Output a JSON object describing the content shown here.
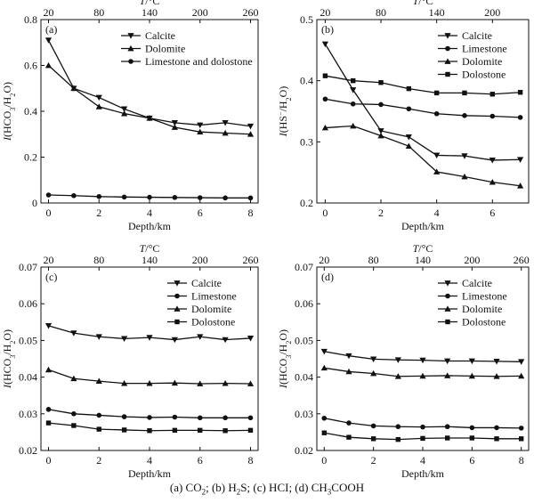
{
  "caption": {
    "a": "(a) CO",
    "a_sub": "2",
    "b": "; (b) H",
    "b_sub": "2",
    "c": "S; (c) HCI; (d) CH",
    "c_sub": "3",
    "d": "COOH"
  },
  "chart_data": [
    {
      "type": "line",
      "panel_label": "(a)",
      "xlabel": "Depth/km",
      "top_xlabel": "T/°C",
      "ylabel": "I(HCO3/H2O)",
      "xlim": [
        -0.3,
        8.3
      ],
      "ylim": [
        0,
        0.8
      ],
      "xticks": [
        0,
        2,
        4,
        6,
        8
      ],
      "yticks": [
        0,
        0.2,
        0.4,
        0.6,
        0.8
      ],
      "ytick_labels": [
        "0",
        "0.2",
        "0.4",
        "0.6",
        "0.8"
      ],
      "top_ticks": [
        20,
        80,
        140,
        200,
        260
      ],
      "legend_position": "top-right",
      "series": [
        {
          "name": "Calcite",
          "marker": "tri-down",
          "x": [
            0,
            1,
            2,
            3,
            4,
            5,
            6,
            7,
            8
          ],
          "y": [
            0.71,
            0.5,
            0.46,
            0.41,
            0.37,
            0.35,
            0.34,
            0.35,
            0.335
          ]
        },
        {
          "name": "Dolomite",
          "marker": "tri-up",
          "x": [
            0,
            1,
            2,
            3,
            4,
            5,
            6,
            7,
            8
          ],
          "y": [
            0.6,
            0.5,
            0.42,
            0.39,
            0.37,
            0.33,
            0.31,
            0.305,
            0.3
          ]
        },
        {
          "name": "Limestone and dolostone",
          "marker": "circle",
          "x": [
            0,
            1,
            2,
            3,
            4,
            5,
            6,
            7,
            8
          ],
          "y": [
            0.035,
            0.032,
            0.028,
            0.026,
            0.025,
            0.024,
            0.023,
            0.022,
            0.022
          ]
        }
      ]
    },
    {
      "type": "line",
      "panel_label": "(b)",
      "xlabel": "Depth/km",
      "top_xlabel": "T/°C",
      "ylabel": "I(HS−/H2O)",
      "xlim": [
        -0.3,
        7.3
      ],
      "ylim": [
        0.2,
        0.5
      ],
      "xticks": [
        0,
        2,
        4,
        6
      ],
      "yticks": [
        0.2,
        0.3,
        0.4,
        0.5
      ],
      "ytick_labels": [
        "0.2",
        "0.3",
        "0.4",
        "0.5"
      ],
      "top_ticks": [
        20,
        80,
        140,
        200
      ],
      "legend_position": "top-right",
      "series": [
        {
          "name": "Calcite",
          "marker": "tri-down",
          "x": [
            0,
            1,
            2,
            3,
            4,
            5,
            6,
            7
          ],
          "y": [
            0.46,
            0.385,
            0.318,
            0.308,
            0.278,
            0.277,
            0.27,
            0.271
          ]
        },
        {
          "name": "Limestone",
          "marker": "circle",
          "x": [
            0,
            1,
            2,
            3,
            4,
            5,
            6,
            7
          ],
          "y": [
            0.37,
            0.362,
            0.361,
            0.354,
            0.346,
            0.343,
            0.342,
            0.34
          ]
        },
        {
          "name": "Dolomite",
          "marker": "tri-up",
          "x": [
            0,
            1,
            2,
            3,
            4,
            5,
            6,
            7
          ],
          "y": [
            0.323,
            0.326,
            0.31,
            0.293,
            0.251,
            0.243,
            0.234,
            0.228
          ]
        },
        {
          "name": "Dolostone",
          "marker": "square",
          "x": [
            0,
            1,
            2,
            3,
            4,
            5,
            6,
            7
          ],
          "y": [
            0.408,
            0.4,
            0.397,
            0.387,
            0.38,
            0.38,
            0.378,
            0.381
          ]
        }
      ]
    },
    {
      "type": "line",
      "panel_label": "(c)",
      "xlabel": "Depth/km",
      "top_xlabel": "T/°C",
      "ylabel": "I(HCO3/H2O)",
      "xlim": [
        -0.3,
        8.3
      ],
      "ylim": [
        0.02,
        0.07
      ],
      "xticks": [
        0,
        2,
        4,
        6,
        8
      ],
      "yticks": [
        0.02,
        0.03,
        0.04,
        0.05,
        0.06,
        0.07
      ],
      "ytick_labels": [
        "0.02",
        "0.03",
        "0.04",
        "0.05",
        "0.06",
        "0.07"
      ],
      "top_ticks": [
        20,
        80,
        140,
        200,
        260
      ],
      "legend_position": "top-right",
      "series": [
        {
          "name": "Calcite",
          "marker": "tri-down",
          "x": [
            0,
            1,
            2,
            3,
            4,
            5,
            6,
            7,
            8
          ],
          "y": [
            0.054,
            0.052,
            0.051,
            0.0505,
            0.0508,
            0.0502,
            0.051,
            0.0502,
            0.0506
          ]
        },
        {
          "name": "Limestone",
          "marker": "circle",
          "x": [
            0,
            1,
            2,
            3,
            4,
            5,
            6,
            7,
            8
          ],
          "y": [
            0.0312,
            0.03,
            0.0296,
            0.0292,
            0.029,
            0.0291,
            0.0289,
            0.0289,
            0.0289
          ]
        },
        {
          "name": "Dolomite",
          "marker": "tri-up",
          "x": [
            0,
            1,
            2,
            3,
            4,
            5,
            6,
            7,
            8
          ],
          "y": [
            0.042,
            0.0396,
            0.0389,
            0.0383,
            0.0383,
            0.0384,
            0.0382,
            0.0383,
            0.0382
          ]
        },
        {
          "name": "Dolostone",
          "marker": "square",
          "x": [
            0,
            1,
            2,
            3,
            4,
            5,
            6,
            7,
            8
          ],
          "y": [
            0.0275,
            0.0268,
            0.0258,
            0.0256,
            0.0254,
            0.0255,
            0.0255,
            0.0254,
            0.0255
          ]
        }
      ]
    },
    {
      "type": "line",
      "panel_label": "(d)",
      "xlabel": "Depth/km",
      "top_xlabel": "T/°C",
      "ylabel": "I(HCO3/H2O)",
      "xlim": [
        -0.3,
        8.3
      ],
      "ylim": [
        0.02,
        0.07
      ],
      "xticks": [
        0,
        2,
        4,
        6,
        8
      ],
      "yticks": [
        0.02,
        0.03,
        0.04,
        0.05,
        0.06,
        0.07
      ],
      "ytick_labels": [
        "0.02",
        "0.03",
        "0.04",
        "0.05",
        "0.06",
        "0.07"
      ],
      "top_ticks": [
        20,
        80,
        140,
        200,
        260
      ],
      "legend_position": "top-right",
      "series": [
        {
          "name": "Calcite",
          "marker": "tri-down",
          "x": [
            0,
            1,
            2,
            3,
            4,
            5,
            6,
            7,
            8
          ],
          "y": [
            0.047,
            0.0458,
            0.0449,
            0.0447,
            0.0446,
            0.0444,
            0.0444,
            0.0443,
            0.0442
          ]
        },
        {
          "name": "Limestone",
          "marker": "circle",
          "x": [
            0,
            1,
            2,
            3,
            4,
            5,
            6,
            7,
            8
          ],
          "y": [
            0.0288,
            0.0275,
            0.0267,
            0.0265,
            0.0264,
            0.0265,
            0.0262,
            0.0262,
            0.0261
          ]
        },
        {
          "name": "Dolomite",
          "marker": "tri-up",
          "x": [
            0,
            1,
            2,
            3,
            4,
            5,
            6,
            7,
            8
          ],
          "y": [
            0.0425,
            0.0415,
            0.041,
            0.0402,
            0.0403,
            0.0404,
            0.0403,
            0.0402,
            0.0403
          ]
        },
        {
          "name": "Dolostone",
          "marker": "square",
          "x": [
            0,
            1,
            2,
            3,
            4,
            5,
            6,
            7,
            8
          ],
          "y": [
            0.0248,
            0.0236,
            0.0232,
            0.023,
            0.0233,
            0.0234,
            0.0234,
            0.0232,
            0.0232
          ]
        }
      ]
    }
  ]
}
